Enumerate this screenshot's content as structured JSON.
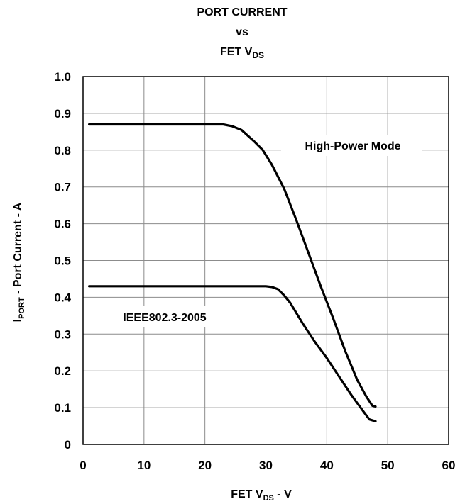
{
  "chart_data": {
    "type": "line",
    "title": {
      "line1": "PORT CURRENT",
      "line2": "vs",
      "line3_main": "FET V",
      "line3_sub": "DS"
    },
    "xlabel": {
      "main": "FET V",
      "sub": "DS",
      "suffix": " - V"
    },
    "ylabel": {
      "main": "I",
      "sub": "PORT",
      "suffix": " - Port Current - A"
    },
    "xlim": [
      0,
      60
    ],
    "ylim": [
      0,
      1.0
    ],
    "x_ticks": [
      "0",
      "10",
      "20",
      "30",
      "40",
      "50",
      "60"
    ],
    "y_ticks": [
      "0",
      "0.1",
      "0.2",
      "0.3",
      "0.4",
      "0.5",
      "0.6",
      "0.7",
      "0.8",
      "0.9",
      "1.0"
    ],
    "grid": true,
    "annotations": [
      {
        "text": "High-Power Mode",
        "series": 0
      },
      {
        "text": "IEEE802.3-2005",
        "series": 1
      }
    ],
    "series": [
      {
        "x": [
          1,
          10,
          20,
          23,
          24.5,
          26,
          28,
          29.5,
          31,
          33,
          35,
          37,
          39,
          41,
          43,
          45,
          46.5,
          47.5,
          48
        ],
        "y": [
          0.87,
          0.87,
          0.87,
          0.87,
          0.865,
          0.855,
          0.825,
          0.8,
          0.76,
          0.695,
          0.61,
          0.52,
          0.43,
          0.345,
          0.255,
          0.175,
          0.13,
          0.105,
          0.103
        ]
      },
      {
        "x": [
          1,
          10,
          20,
          30,
          31,
          32,
          33,
          34,
          36,
          38,
          40,
          42,
          44,
          46,
          47,
          48
        ],
        "y": [
          0.43,
          0.43,
          0.43,
          0.43,
          0.428,
          0.422,
          0.405,
          0.385,
          0.33,
          0.28,
          0.235,
          0.185,
          0.135,
          0.09,
          0.068,
          0.063
        ]
      }
    ]
  }
}
